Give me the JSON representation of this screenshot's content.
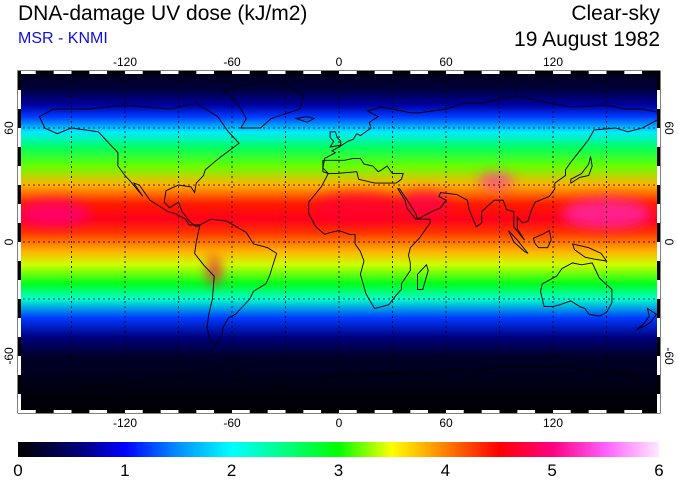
{
  "header": {
    "title": "DNA-damage UV dose (kJ/m2)",
    "subtitle": "MSR - KNMI",
    "condition": "Clear-sky",
    "date": "19 August 1982"
  },
  "map": {
    "projection": "equirectangular",
    "lon_range": [
      -180,
      180
    ],
    "lat_range": [
      -90,
      90
    ],
    "gridlines": {
      "lon": [
        -150,
        -120,
        -90,
        -60,
        -30,
        0,
        30,
        60,
        90,
        120,
        150
      ],
      "lat": [
        -60,
        -30,
        0,
        30,
        60
      ]
    },
    "lon_ticks": [
      {
        "value": -120,
        "label": "-120"
      },
      {
        "value": -60,
        "label": "-60"
      },
      {
        "value": 0,
        "label": "0"
      },
      {
        "value": 60,
        "label": "60"
      },
      {
        "value": 120,
        "label": "120"
      }
    ],
    "lat_ticks": [
      {
        "value": 60,
        "label": "60"
      },
      {
        "value": 0,
        "label": "0"
      },
      {
        "value": -60,
        "label": "-60"
      }
    ],
    "dose_profile": [
      {
        "lat": -90,
        "dose": 0.0
      },
      {
        "lat": -60,
        "dose": 0.2
      },
      {
        "lat": -50,
        "dose": 0.6
      },
      {
        "lat": -40,
        "dose": 1.2
      },
      {
        "lat": -30,
        "dose": 2.2
      },
      {
        "lat": -22,
        "dose": 2.9
      },
      {
        "lat": -12,
        "dose": 3.4
      },
      {
        "lat": -5,
        "dose": 3.8
      },
      {
        "lat": 5,
        "dose": 4.3
      },
      {
        "lat": 12,
        "dose": 4.6
      },
      {
        "lat": 20,
        "dose": 4.4
      },
      {
        "lat": 30,
        "dose": 3.8
      },
      {
        "lat": 40,
        "dose": 3.2
      },
      {
        "lat": 50,
        "dose": 2.6
      },
      {
        "lat": 58,
        "dose": 1.9
      },
      {
        "lat": 66,
        "dose": 1.2
      },
      {
        "lat": 72,
        "dose": 0.7
      },
      {
        "lat": 80,
        "dose": 0.3
      },
      {
        "lat": 90,
        "dose": 0.1
      }
    ],
    "hotspots": [
      {
        "name": "pacific-west",
        "lon": -160,
        "lat": 15,
        "rlon": 20,
        "rlat": 7,
        "dose": 5.0
      },
      {
        "name": "north-africa",
        "lon": 10,
        "lat": 18,
        "rlon": 25,
        "rlat": 8,
        "dose": 4.7
      },
      {
        "name": "arabia",
        "lon": 48,
        "lat": 20,
        "rlon": 14,
        "rlat": 7,
        "dose": 4.8
      },
      {
        "name": "tibet",
        "lon": 88,
        "lat": 32,
        "rlon": 10,
        "rlat": 4,
        "dose": 5.2
      },
      {
        "name": "west-pacific",
        "lon": 150,
        "lat": 15,
        "rlon": 25,
        "rlat": 8,
        "dose": 5.2
      },
      {
        "name": "andes",
        "lon": -70,
        "lat": -15,
        "rlon": 4,
        "rlat": 8,
        "dose": 4.8
      }
    ]
  },
  "colorbar": {
    "min": 0,
    "max": 6,
    "labels": [
      "0",
      "1",
      "2",
      "3",
      "4",
      "5",
      "6"
    ],
    "stops": [
      {
        "value": 0.0,
        "color": "#000000"
      },
      {
        "value": 0.6,
        "color": "#000080"
      },
      {
        "value": 1.0,
        "color": "#0000ff"
      },
      {
        "value": 1.5,
        "color": "#0090ff"
      },
      {
        "value": 2.0,
        "color": "#00ffff"
      },
      {
        "value": 2.5,
        "color": "#00ff80"
      },
      {
        "value": 3.0,
        "color": "#00ff00"
      },
      {
        "value": 3.5,
        "color": "#ffff00"
      },
      {
        "value": 4.0,
        "color": "#ff8000"
      },
      {
        "value": 4.5,
        "color": "#ff0000"
      },
      {
        "value": 5.0,
        "color": "#ff0080"
      },
      {
        "value": 5.5,
        "color": "#ff60ff"
      },
      {
        "value": 6.0,
        "color": "#ffe8ff"
      }
    ]
  }
}
